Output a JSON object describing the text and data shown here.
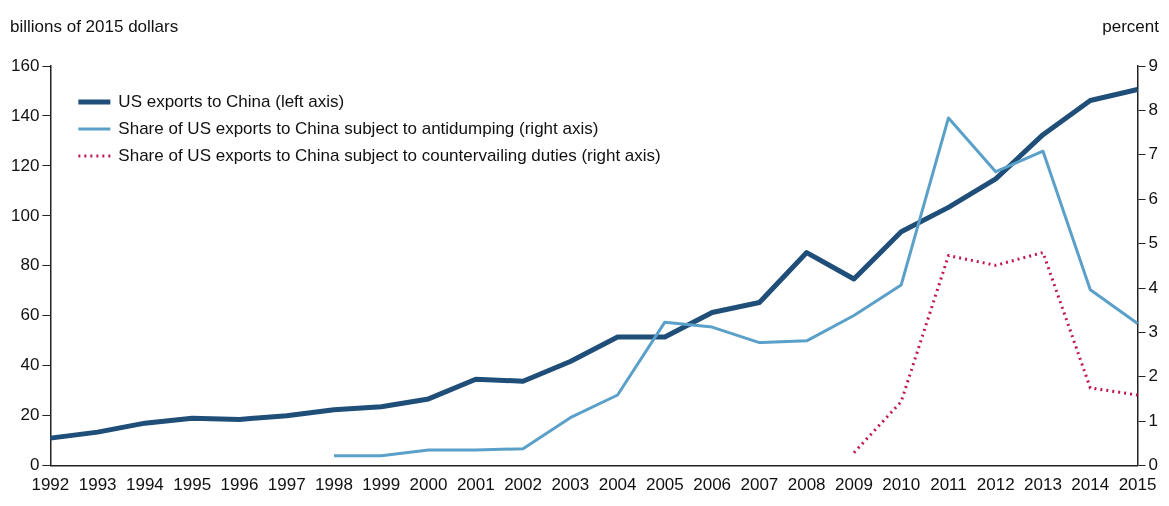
{
  "chart_data": {
    "type": "line",
    "ylabel": "billions of 2015 dollars",
    "y2label": "percent",
    "categories": [
      "1992",
      "1993",
      "1994",
      "1995",
      "1996",
      "1997",
      "1998",
      "1999",
      "2000",
      "2001",
      "2002",
      "2003",
      "2004",
      "2005",
      "2006",
      "2007",
      "2008",
      "2009",
      "2010",
      "2011",
      "2012",
      "2013",
      "2014",
      "2015"
    ],
    "series": [
      {
        "name": "US exports to China (left axis)",
        "color": "#1f4e79",
        "line_style": "solid",
        "values": [
          11,
          13.4,
          17,
          19,
          18.5,
          20,
          22.4,
          23.6,
          26.7,
          34.6,
          33.8,
          41.7,
          51.5,
          51.5,
          61.3,
          65.3,
          85.3,
          74.7,
          93.6,
          103.4,
          114.8,
          132.5,
          146.2,
          150.6
        ]
      },
      {
        "name": "Share of US exports to China subject to antidumping (right axis)",
        "color": "#5aa0c8",
        "axis": "y2",
        "line_style": "solid",
        "values": [
          null,
          null,
          null,
          null,
          null,
          null,
          0.22,
          0.22,
          0.35,
          0.35,
          0.38,
          1.08,
          1.59,
          3.23,
          3.12,
          2.77,
          2.81,
          3.38,
          4.07,
          7.83,
          6.62,
          7.08,
          3.96,
          3.2
        ]
      },
      {
        "name": "Share of US exports to China subject to countervailing duties (right axis)",
        "color": "#c0174f",
        "axis": "y2",
        "line_style": "dotted",
        "values": [
          null,
          null,
          null,
          null,
          null,
          null,
          null,
          null,
          null,
          null,
          null,
          null,
          null,
          null,
          null,
          null,
          null,
          0.29,
          1.44,
          4.73,
          4.51,
          4.8,
          1.75,
          1.59
        ]
      }
    ],
    "ylim": [
      0,
      160
    ],
    "yticks": [
      0,
      20,
      40,
      60,
      80,
      100,
      120,
      140,
      160
    ],
    "y2lim": [
      0,
      9
    ],
    "y2ticks": [
      0,
      1,
      2,
      3,
      4,
      5,
      6,
      7,
      8,
      9
    ],
    "grid": false,
    "legend": "top left",
    "marker": "none"
  }
}
